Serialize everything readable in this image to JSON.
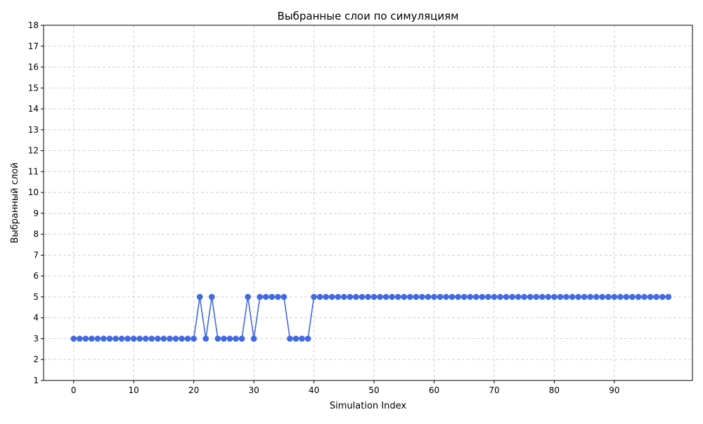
{
  "chart_data": {
    "type": "line",
    "title": "Выбранные слои по симуляциям",
    "xlabel": "Simulation Index",
    "ylabel": "Выбранный слой",
    "xlim": [
      -5,
      103
    ],
    "ylim": [
      1,
      18
    ],
    "x_ticks": [
      0,
      10,
      20,
      30,
      40,
      50,
      60,
      70,
      80,
      90
    ],
    "y_ticks": [
      1,
      2,
      3,
      4,
      5,
      6,
      7,
      8,
      9,
      10,
      11,
      12,
      13,
      14,
      15,
      16,
      17,
      18
    ],
    "grid": true,
    "grid_style": "dashed",
    "line_color": "#4169e1",
    "marker": "circle",
    "series": [
      {
        "x": [
          0,
          1,
          2,
          3,
          4,
          5,
          6,
          7,
          8,
          9,
          10,
          11,
          12,
          13,
          14,
          15,
          16,
          17,
          18,
          19,
          20,
          21,
          22,
          23,
          24,
          25,
          26,
          27,
          28,
          29,
          30,
          31,
          32,
          33,
          34,
          35,
          36,
          37,
          38,
          39,
          40,
          41,
          42,
          43,
          44,
          45,
          46,
          47,
          48,
          49,
          50,
          51,
          52,
          53,
          54,
          55,
          56,
          57,
          58,
          59,
          60,
          61,
          62,
          63,
          64,
          65,
          66,
          67,
          68,
          69,
          70,
          71,
          72,
          73,
          74,
          75,
          76,
          77,
          78,
          79,
          80,
          81,
          82,
          83,
          84,
          85,
          86,
          87,
          88,
          89,
          90,
          91,
          92,
          93,
          94,
          95,
          96,
          97,
          98,
          99
        ],
        "values": [
          3,
          3,
          3,
          3,
          3,
          3,
          3,
          3,
          3,
          3,
          3,
          3,
          3,
          3,
          3,
          3,
          3,
          3,
          3,
          3,
          3,
          5,
          3,
          5,
          3,
          3,
          3,
          3,
          3,
          5,
          3,
          5,
          5,
          5,
          5,
          5,
          3,
          3,
          3,
          3,
          5,
          5,
          5,
          5,
          5,
          5,
          5,
          5,
          5,
          5,
          5,
          5,
          5,
          5,
          5,
          5,
          5,
          5,
          5,
          5,
          5,
          5,
          5,
          5,
          5,
          5,
          5,
          5,
          5,
          5,
          5,
          5,
          5,
          5,
          5,
          5,
          5,
          5,
          5,
          5,
          5,
          5,
          5,
          5,
          5,
          5,
          5,
          5,
          5,
          5,
          5,
          5,
          5,
          5,
          5,
          5,
          5,
          5,
          5,
          5
        ]
      }
    ]
  }
}
